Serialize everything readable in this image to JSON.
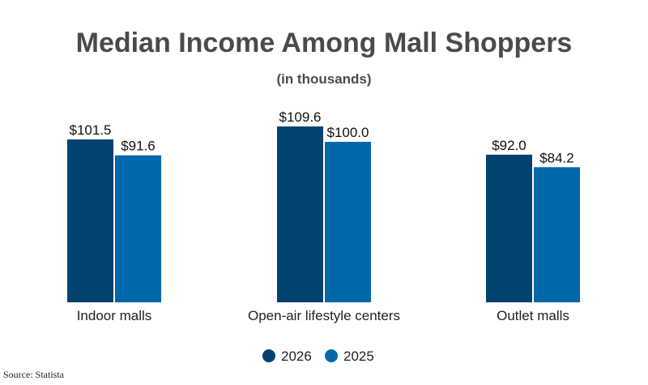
{
  "chart_data": {
    "type": "bar",
    "title": "Median Income Among Mall Shoppers",
    "subtitle": "(in thousands)",
    "categories": [
      "Indoor malls",
      "Open-air lifestyle centers",
      "Outlet malls"
    ],
    "series": [
      {
        "name": "2026",
        "values": [
          101.5,
          109.6,
          92.0
        ],
        "labels": [
          "$101.5",
          "$109.6",
          "$92.0"
        ],
        "color": "#004270"
      },
      {
        "name": "2025",
        "values": [
          91.6,
          100.0,
          84.2
        ],
        "labels": [
          "$91.6",
          "$100.0",
          "$84.2"
        ],
        "color": "#0068a8"
      }
    ],
    "ylim": [
      0,
      120
    ],
    "grid": false,
    "legend_position": "bottom-center"
  },
  "source": "Source: Statista"
}
